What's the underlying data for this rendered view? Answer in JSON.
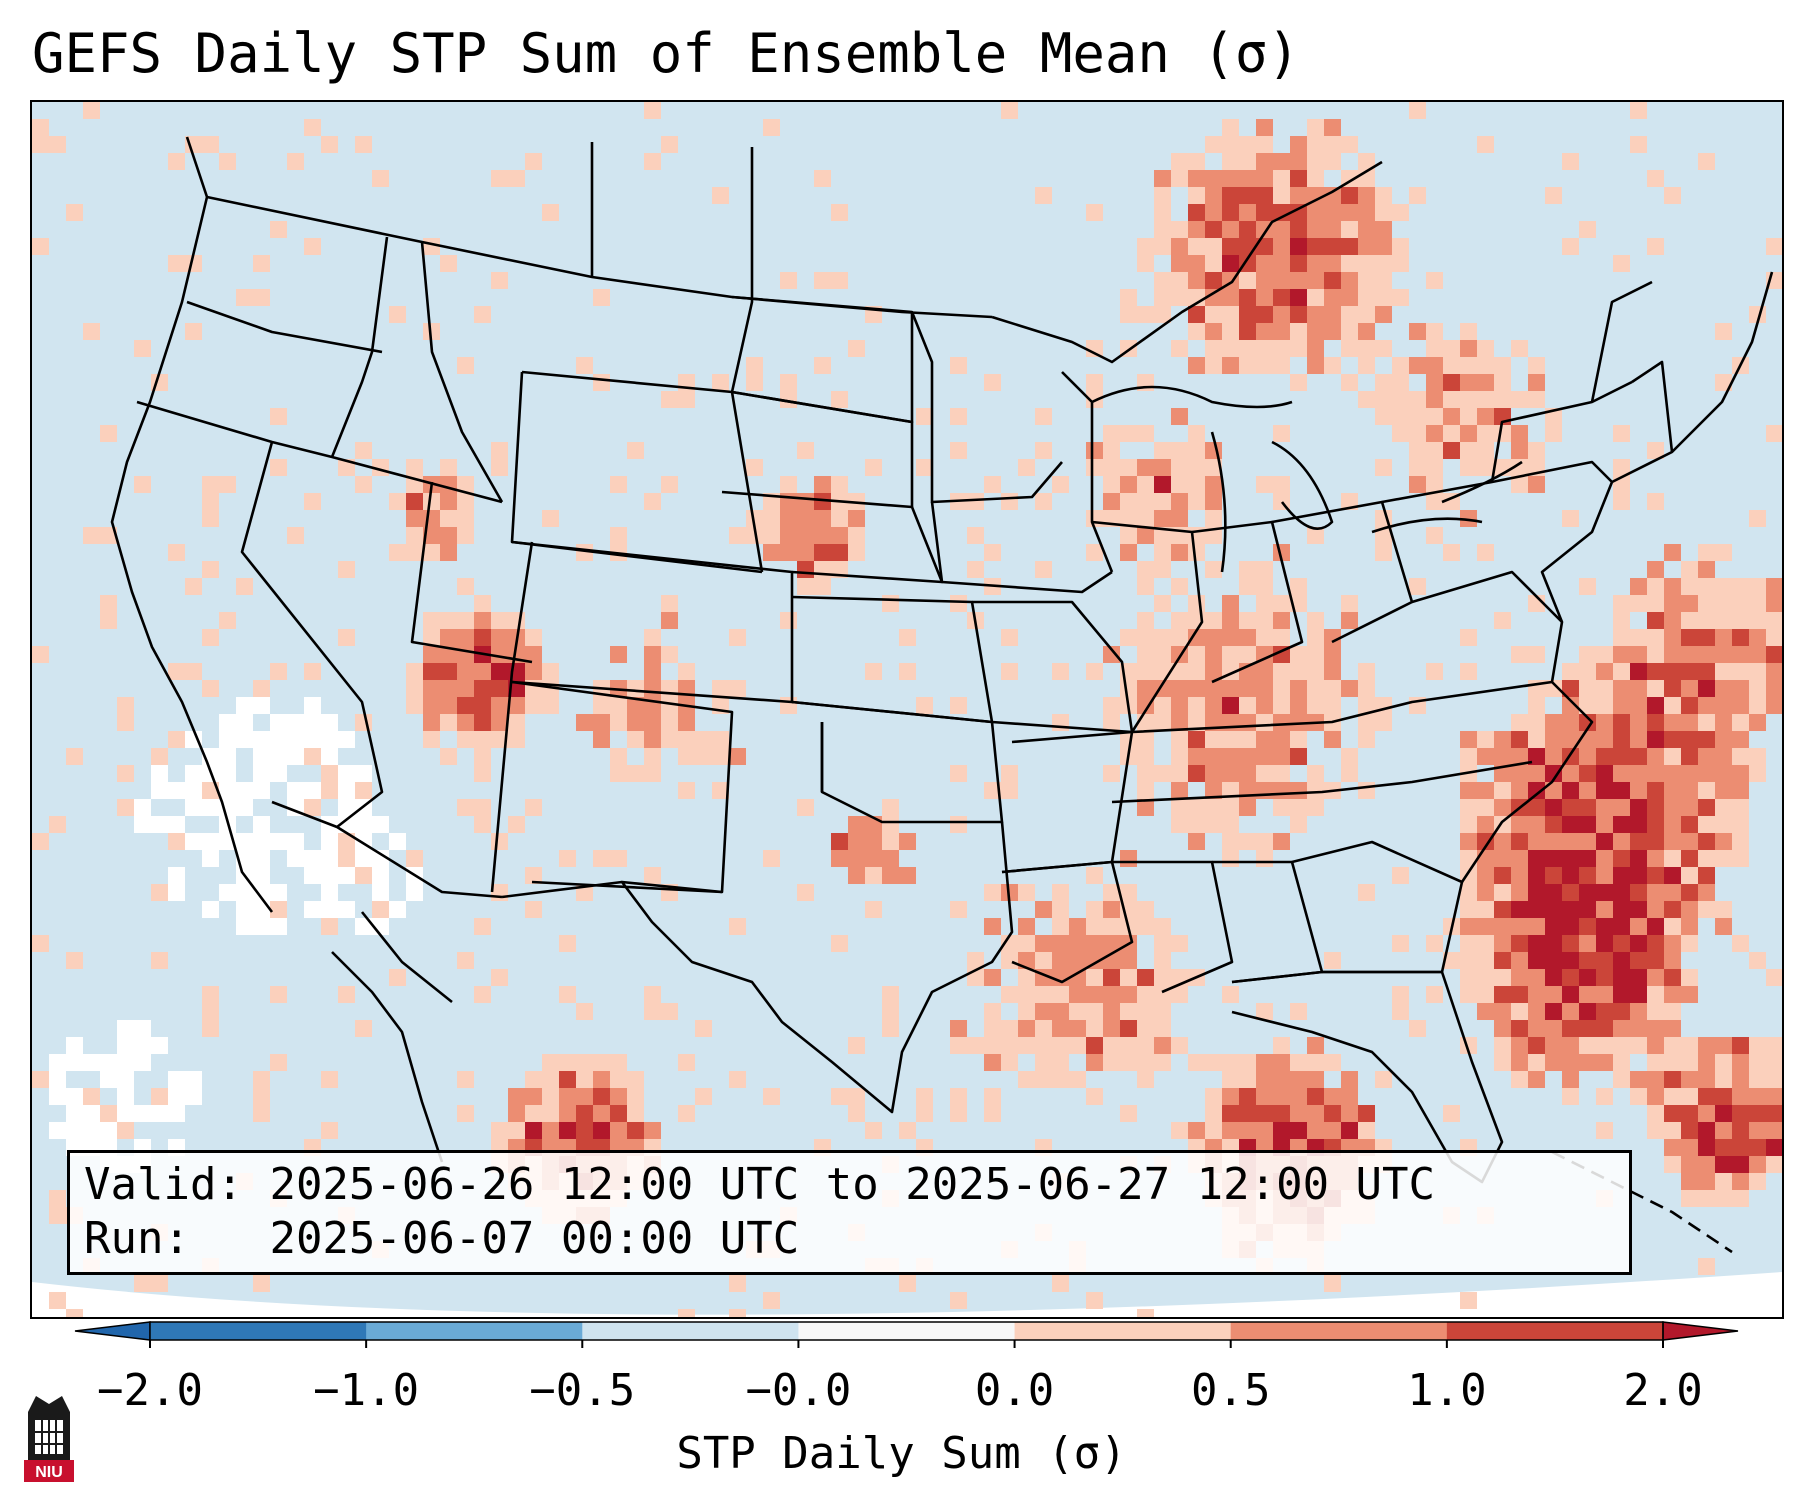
{
  "title": "GEFS Daily STP Sum of Ensemble Mean (σ)",
  "info": {
    "valid_label": "Valid:",
    "valid_value": "2025-06-26 12:00 UTC to 2025-06-27 12:00 UTC",
    "run_label": "Run:",
    "run_value": "2025-06-07 00:00 UTC"
  },
  "colorbar": {
    "label": "STP Daily Sum (σ)",
    "ticks": [
      "−2.0",
      "−1.0",
      "−0.5",
      "−0.0",
      "0.0",
      "0.5",
      "1.0",
      "2.0"
    ],
    "colors": [
      "#2f78b7",
      "#6aaad6",
      "#cfe3ef",
      "#f7f7f7",
      "#fbd0bc",
      "#ec8d72",
      "#cb4539"
    ],
    "under_color": "#2166ac",
    "over_color": "#b2182b"
  },
  "map": {
    "ocean_color": "#d1e5f0",
    "border_color": "#000000",
    "projection": "Lambert Conformal",
    "region": "Contiguous United States"
  },
  "logo": {
    "text": "NIU",
    "icon": "university-tower-icon"
  }
}
